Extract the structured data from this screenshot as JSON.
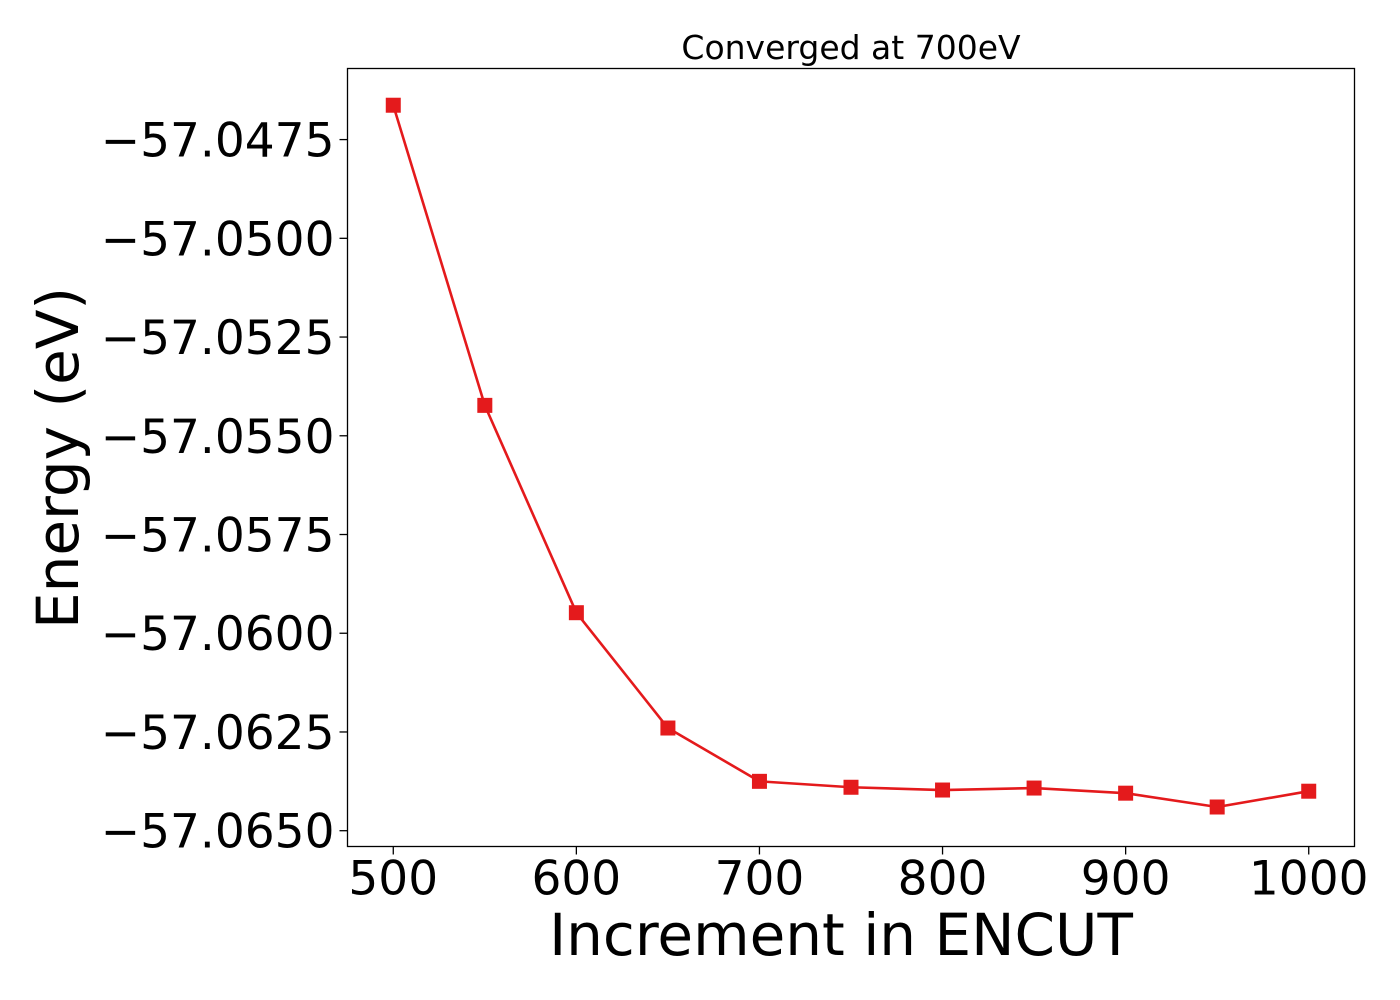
{
  "chart_data": {
    "type": "line",
    "title": "Converged at 700eV",
    "xlabel": "Increment in ENCUT",
    "ylabel": "Energy (eV)",
    "xlim": [
      475,
      1025
    ],
    "ylim": [
      -57.0654,
      -57.0457
    ],
    "xticks": [
      500,
      600,
      700,
      800,
      900,
      1000
    ],
    "xtick_labels": [
      "500",
      "600",
      "700",
      "800",
      "900",
      "1000"
    ],
    "yticks": [
      -57.0475,
      -57.05,
      -57.0525,
      -57.055,
      -57.0575,
      -57.06,
      -57.0625,
      -57.065
    ],
    "ytick_labels": [
      "−57.0475",
      "−57.0500",
      "−57.0525",
      "−57.0550",
      "−57.0575",
      "−57.0600",
      "−57.0625",
      "−57.0650"
    ],
    "grid": false,
    "series": [
      {
        "color": "#e41a1c",
        "marker": "square",
        "x": [
          500,
          550,
          600,
          650,
          700,
          750,
          800,
          850,
          900,
          950,
          1000
        ],
        "y": [
          -57.04663,
          -57.05423,
          -57.05948,
          -57.0624,
          -57.06375,
          -57.0639,
          -57.06397,
          -57.06392,
          -57.06405,
          -57.0644,
          -57.064
        ]
      }
    ]
  }
}
